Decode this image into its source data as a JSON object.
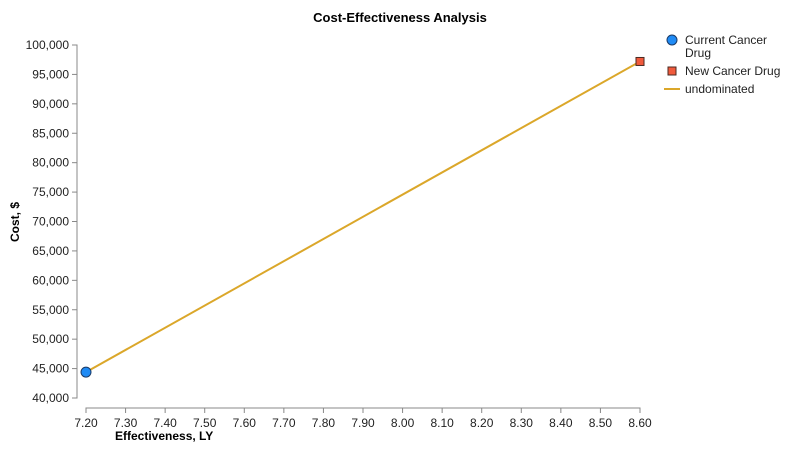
{
  "chart_data": {
    "type": "scatter",
    "title": "Cost-Effectiveness Analysis",
    "xlabel": "Effectiveness, LY",
    "ylabel": "Cost, $",
    "xlim": [
      7.2,
      8.6
    ],
    "ylim": [
      40000,
      100000
    ],
    "x_ticks": [
      "7.20",
      "7.30",
      "7.40",
      "7.50",
      "7.60",
      "7.70",
      "7.80",
      "7.90",
      "8.00",
      "8.10",
      "8.20",
      "8.30",
      "8.40",
      "8.50",
      "8.60"
    ],
    "y_ticks": [
      "40,000",
      "45,000",
      "50,000",
      "55,000",
      "60,000",
      "65,000",
      "70,000",
      "75,000",
      "80,000",
      "85,000",
      "90,000",
      "95,000",
      "100,000"
    ],
    "grid": false,
    "legend_position": "right-top",
    "series": [
      {
        "name": "Current Cancer Drug",
        "type": "scatter",
        "marker": "circle",
        "color": "#1f8bf5",
        "points": [
          {
            "x": 7.2,
            "y": 44400
          }
        ]
      },
      {
        "name": "New Cancer Drug",
        "type": "scatter",
        "marker": "square",
        "color": "#f05a3c",
        "points": [
          {
            "x": 8.6,
            "y": 97200
          }
        ]
      },
      {
        "name": "undominated",
        "type": "line",
        "color": "#dba72a",
        "points": [
          {
            "x": 7.2,
            "y": 44400
          },
          {
            "x": 8.6,
            "y": 97200
          }
        ]
      }
    ]
  },
  "legend": {
    "items": [
      {
        "label_line1": "Current Cancer",
        "label_line2": "Drug"
      },
      {
        "label_line1": "New Cancer Drug"
      },
      {
        "label_line1": "undominated"
      }
    ]
  }
}
